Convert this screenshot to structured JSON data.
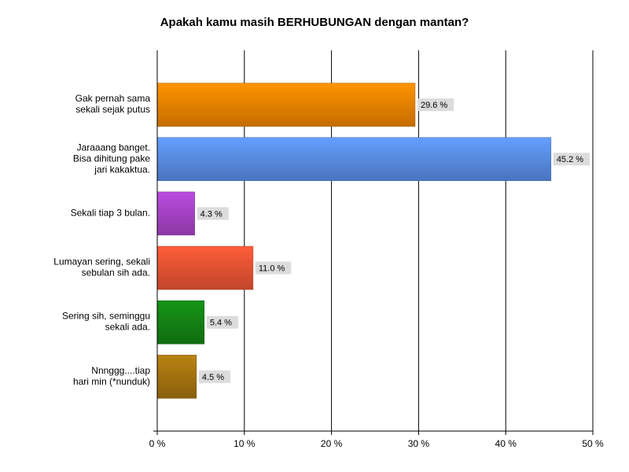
{
  "chart_data": {
    "type": "hbar",
    "title": "Apakah kamu masih BERHUBUNGAN dengan mantan?",
    "categories": [
      "Gak pernah sama\nsekali sejak putus",
      "Jaraaang banget.\nBisa dihitung pake\njari kakaktua.",
      "Sekali tiap 3 bulan.",
      "Lumayan sering, sekali\nsebulan sih ada.",
      "Sering sih, seminggu\nsekali ada.",
      "Nnnggg....tiap\nhari min (*nunduk)"
    ],
    "values": [
      29.6,
      45.2,
      4.3,
      11.0,
      5.4,
      4.5
    ],
    "value_labels": [
      "29.6 %",
      "45.2 %",
      "4.3 %",
      "11.0 %",
      "5.4 %",
      "4.5 %"
    ],
    "colors": [
      "#f08400",
      "#5a8ee6",
      "#a844c8",
      "#ec5434",
      "#148414",
      "#a67410"
    ],
    "xlim": [
      0,
      50
    ],
    "xticks": [
      {
        "value": 0,
        "label": "0 %"
      },
      {
        "value": 10,
        "label": "10 %"
      },
      {
        "value": 20,
        "label": "20 %"
      },
      {
        "value": 30,
        "label": "30 %"
      },
      {
        "value": 40,
        "label": "40 %"
      },
      {
        "value": 50,
        "label": "50 %"
      }
    ],
    "grid": true
  }
}
